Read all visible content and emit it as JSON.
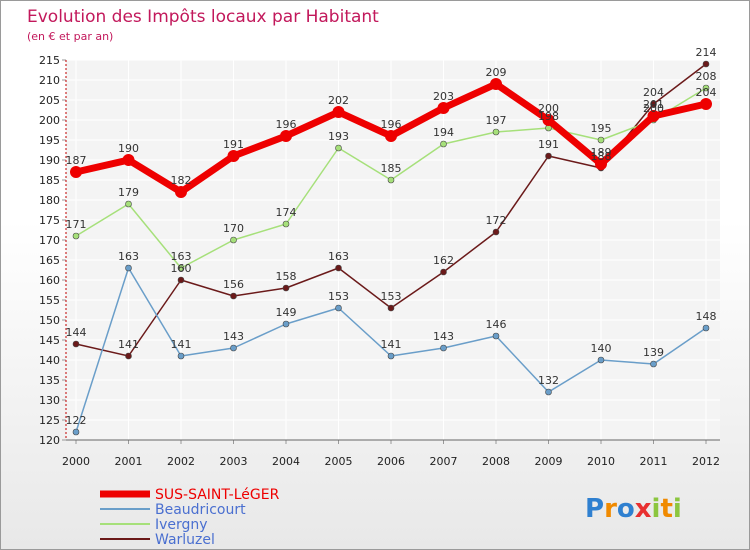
{
  "chart_data": {
    "type": "line",
    "title": "Evolution des Impôts locaux par Habitant",
    "subtitle": "(en € et par an)",
    "xlabel": "",
    "ylabel": "",
    "ylim": [
      120,
      215
    ],
    "yticks": [
      "120",
      "125",
      "130",
      "135",
      "140",
      "145",
      "150",
      "155",
      "160",
      "165",
      "170",
      "175",
      "180",
      "185",
      "190",
      "195",
      "200",
      "205",
      "210",
      "215"
    ],
    "categories": [
      "2000",
      "2001",
      "2002",
      "2003",
      "2004",
      "2005",
      "2006",
      "2007",
      "2008",
      "2009",
      "2010",
      "2011",
      "2012"
    ],
    "series": [
      {
        "name": "Warluzel",
        "color": "#6b1a1a",
        "width": 1.5,
        "marker": 3,
        "values": [
          144,
          141,
          160,
          156,
          158,
          163,
          153,
          162,
          172,
          191,
          188,
          204,
          214
        ]
      },
      {
        "name": "Ivergny",
        "color": "#a6e07a",
        "width": 1.5,
        "marker": 3,
        "values": [
          171,
          179,
          163,
          170,
          174,
          193,
          185,
          194,
          197,
          198,
          195,
          200,
          208
        ]
      },
      {
        "name": "Beaudricourt",
        "color": "#6a9ec9",
        "width": 1.5,
        "marker": 3,
        "values": [
          122,
          163,
          141,
          143,
          149,
          153,
          141,
          143,
          146,
          132,
          140,
          139,
          148
        ]
      },
      {
        "name": "SUS-SAINT-LéGER",
        "color": "#ee0000",
        "width": 7,
        "marker": 6,
        "values": [
          187,
          190,
          182,
          191,
          196,
          202,
          196,
          203,
          209,
          200,
          189,
          201,
          204
        ]
      }
    ],
    "legend": [
      {
        "name": "SUS-SAINT-LéGER",
        "color": "#ee0000"
      },
      {
        "name": "Beaudricourt",
        "color": "#6a9ec9"
      },
      {
        "name": "Ivergny",
        "color": "#a6e07a"
      },
      {
        "name": "Warluzel",
        "color": "#6b1a1a"
      }
    ],
    "legend_position": "bottom-left",
    "grid": true
  },
  "logo": {
    "text": "Proxiti"
  }
}
